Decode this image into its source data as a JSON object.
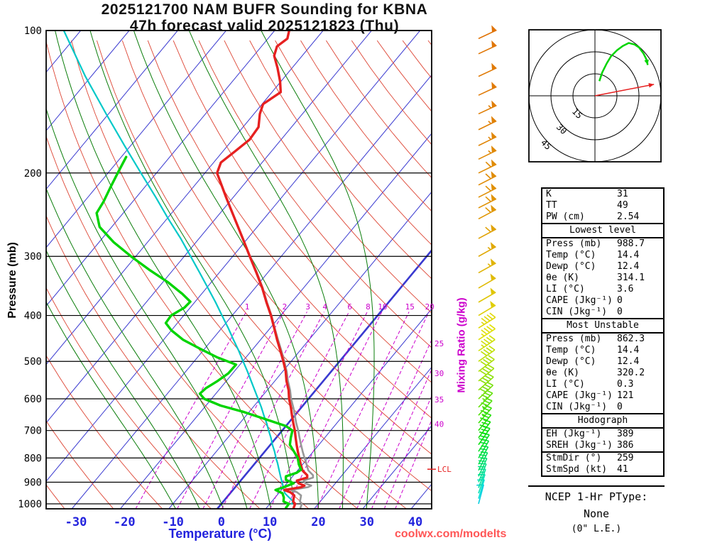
{
  "title": {
    "line1": "2025121700 NAM BUFR Sounding for KBNA",
    "line2": "47h forecast valid 2025121823 (Thu)"
  },
  "axes": {
    "pressure_label": "Pressure (mb)",
    "temperature_label": "Temperature (°C)",
    "mixing_ratio_label": "Mixing Ratio (g/kg)",
    "pressure_ticks": [
      100,
      200,
      300,
      400,
      500,
      600,
      700,
      800,
      900,
      1000
    ],
    "temperature_ticks": [
      -30,
      -20,
      -10,
      0,
      10,
      20,
      30,
      40
    ]
  },
  "chart_data": {
    "type": "skew-t log-p sounding",
    "pressure_range_mb": [
      100,
      1024
    ],
    "temperature_axis_range_c": [
      -36,
      43
    ],
    "isotherms": {
      "min": -120,
      "max": 40,
      "step": 10
    },
    "dry_adiabats_K": {
      "min": 230,
      "max": 460,
      "step": 10
    },
    "moist_adiabats_C": [
      -10,
      -5,
      0,
      5,
      10,
      15,
      20,
      25,
      30
    ],
    "mixing_ratio_values": [
      1,
      2,
      3,
      4,
      6,
      8,
      10,
      15,
      20,
      25,
      30,
      35,
      40
    ],
    "mixing_ratio_labeled_at_mb": 390,
    "lcl": {
      "label": "LCL",
      "pressure": 845
    },
    "style": {
      "isotherm_color": "#3a3ad0",
      "isotherm_zero_width": 2.6,
      "dry_adiabat_color": "#dd4433",
      "moist_adiabat_color": "#0a7d0a",
      "mixing_ratio_color": "#cc00cc",
      "grid_color": "#000000",
      "pressure_tick_color": "#000000",
      "temperature_tick_color": "#2222dd",
      "lcl_color": "#e62020"
    },
    "series": [
      {
        "name": "parcel",
        "color": "#00c8c8",
        "width": 2.2,
        "points": [
          [
            1000,
            14.5
          ],
          [
            988.7,
            14.4
          ],
          [
            960,
            12.1
          ],
          [
            950,
            11.3
          ],
          [
            940,
            10.8
          ],
          [
            920,
            9.8
          ],
          [
            900,
            8.8
          ],
          [
            875,
            7.5
          ],
          [
            850,
            6.2
          ],
          [
            820,
            4.6
          ],
          [
            800,
            3.4
          ],
          [
            775,
            2.0
          ],
          [
            750,
            0.4
          ],
          [
            725,
            -1.1
          ],
          [
            700,
            -2.8
          ],
          [
            675,
            -4.5
          ],
          [
            650,
            -6.4
          ],
          [
            625,
            -8.3
          ],
          [
            600,
            -10.4
          ],
          [
            575,
            -12.6
          ],
          [
            550,
            -14.9
          ],
          [
            525,
            -17.3
          ],
          [
            500,
            -19.9
          ],
          [
            475,
            -22.6
          ],
          [
            450,
            -25.6
          ],
          [
            425,
            -28.7
          ],
          [
            400,
            -32.1
          ],
          [
            375,
            -35.7
          ],
          [
            350,
            -39.7
          ],
          [
            325,
            -44.0
          ],
          [
            300,
            -48.7
          ],
          [
            275,
            -53.8
          ],
          [
            250,
            -59.7
          ],
          [
            225,
            -66.0
          ],
          [
            200,
            -73.2
          ],
          [
            175,
            -81.3
          ],
          [
            150,
            -90.5
          ],
          [
            125,
            -101.2
          ],
          [
            100,
            -113.5
          ]
        ]
      },
      {
        "name": "virtual_temperature",
        "color": "#979797",
        "width": 2.6,
        "points": [
          [
            1020,
            17.0
          ],
          [
            1000,
            16.6
          ],
          [
            988.7,
            15.8
          ],
          [
            960,
            15.0
          ],
          [
            945,
            13.6
          ],
          [
            935,
            12.0
          ],
          [
            922,
            15.0
          ],
          [
            915,
            15.4
          ],
          [
            905,
            13.8
          ],
          [
            893,
            13.0
          ],
          [
            880,
            14.4
          ],
          [
            870,
            14.0
          ],
          [
            850,
            12.2
          ],
          [
            825,
            10.8
          ],
          [
            800,
            9.3
          ],
          [
            775,
            7.8
          ],
          [
            750,
            6.3
          ],
          [
            725,
            4.8
          ],
          [
            700,
            3.3
          ],
          [
            675,
            1.6
          ],
          [
            650,
            0.0
          ],
          [
            625,
            -1.7
          ],
          [
            600,
            -3.6
          ],
          [
            575,
            -5.3
          ],
          [
            550,
            -7.3
          ],
          [
            525,
            -9.2
          ],
          [
            500,
            -11.4
          ],
          [
            475,
            -13.8
          ],
          [
            450,
            -16.4
          ],
          [
            425,
            -19.1
          ],
          [
            400,
            -21.9
          ],
          [
            375,
            -25.1
          ],
          [
            350,
            -28.4
          ],
          [
            325,
            -32.2
          ],
          [
            300,
            -36.4
          ]
        ]
      },
      {
        "name": "temperature",
        "color": "#e62020",
        "width": 3.4,
        "points": [
          [
            1020,
            15.6
          ],
          [
            1000,
            15.2
          ],
          [
            988.7,
            14.4
          ],
          [
            975,
            14.0
          ],
          [
            960,
            13.6
          ],
          [
            945,
            12.2
          ],
          [
            935,
            10.6
          ],
          [
            922,
            13.6
          ],
          [
            915,
            14.0
          ],
          [
            905,
            12.4
          ],
          [
            893,
            11.6
          ],
          [
            880,
            13.2
          ],
          [
            870,
            12.8
          ],
          [
            850,
            11.0
          ],
          [
            825,
            9.6
          ],
          [
            800,
            8.2
          ],
          [
            775,
            6.8
          ],
          [
            750,
            5.4
          ],
          [
            725,
            4.0
          ],
          [
            700,
            2.6
          ],
          [
            675,
            1.0
          ],
          [
            650,
            -0.6
          ],
          [
            625,
            -2.2
          ],
          [
            600,
            -4.0
          ],
          [
            575,
            -5.6
          ],
          [
            550,
            -7.6
          ],
          [
            525,
            -9.4
          ],
          [
            500,
            -11.6
          ],
          [
            475,
            -14.0
          ],
          [
            450,
            -16.6
          ],
          [
            425,
            -19.2
          ],
          [
            400,
            -22.0
          ],
          [
            375,
            -25.2
          ],
          [
            350,
            -28.5
          ],
          [
            325,
            -32.3
          ],
          [
            300,
            -36.5
          ],
          [
            275,
            -41.0
          ],
          [
            250,
            -46.0
          ],
          [
            225,
            -51.5
          ],
          [
            200,
            -57.5
          ],
          [
            190,
            -58.5
          ],
          [
            180,
            -57.5
          ],
          [
            170,
            -56.5
          ],
          [
            160,
            -56.8
          ],
          [
            150,
            -58.8
          ],
          [
            143,
            -59.8
          ],
          [
            135,
            -58.2
          ],
          [
            128,
            -60.2
          ],
          [
            120,
            -63.0
          ],
          [
            113,
            -65.8
          ],
          [
            108,
            -66.8
          ],
          [
            104,
            -66.0
          ],
          [
            100,
            -67.0
          ]
        ]
      },
      {
        "name": "dewpoint",
        "color": "#00d400",
        "width": 3.4,
        "points": [
          [
            1020,
            14.0
          ],
          [
            1000,
            13.9
          ],
          [
            988.7,
            12.4
          ],
          [
            970,
            11.8
          ],
          [
            950,
            10.8
          ],
          [
            935,
            8.8
          ],
          [
            920,
            10.2
          ],
          [
            905,
            11.4
          ],
          [
            890,
            9.2
          ],
          [
            875,
            8.6
          ],
          [
            860,
            10.2
          ],
          [
            847,
            10.6
          ],
          [
            825,
            9.2
          ],
          [
            800,
            7.9
          ],
          [
            775,
            6.0
          ],
          [
            750,
            4.0
          ],
          [
            725,
            3.0
          ],
          [
            700,
            2.1
          ],
          [
            685,
            0.0
          ],
          [
            660,
            -6.0
          ],
          [
            640,
            -11.0
          ],
          [
            620,
            -17.0
          ],
          [
            600,
            -21.5
          ],
          [
            585,
            -23.3
          ],
          [
            570,
            -23.0
          ],
          [
            550,
            -21.8
          ],
          [
            530,
            -20.9
          ],
          [
            508,
            -20.8
          ],
          [
            490,
            -26.0
          ],
          [
            470,
            -31.0
          ],
          [
            450,
            -36.0
          ],
          [
            430,
            -40.0
          ],
          [
            415,
            -42.4
          ],
          [
            400,
            -42.6
          ],
          [
            385,
            -41.2
          ],
          [
            374,
            -41.0
          ],
          [
            360,
            -44.0
          ],
          [
            340,
            -49.0
          ],
          [
            320,
            -55.0
          ],
          [
            300,
            -61.0
          ],
          [
            280,
            -67.0
          ],
          [
            260,
            -72.5
          ],
          [
            243,
            -75.5
          ],
          [
            230,
            -76.0
          ],
          [
            215,
            -77.0
          ],
          [
            200,
            -78.0
          ],
          [
            185,
            -79.0
          ]
        ]
      }
    ],
    "wind_barbs": [
      [
        1000,
        195,
        10
      ],
      [
        975,
        197,
        12
      ],
      [
        950,
        199,
        15
      ],
      [
        925,
        201,
        18
      ],
      [
        900,
        203,
        20
      ],
      [
        875,
        205,
        22
      ],
      [
        850,
        207,
        25
      ],
      [
        825,
        209,
        26
      ],
      [
        800,
        211,
        28
      ],
      [
        775,
        213,
        30
      ],
      [
        750,
        215,
        30
      ],
      [
        725,
        217,
        32
      ],
      [
        700,
        219,
        33
      ],
      [
        675,
        221,
        35
      ],
      [
        650,
        223,
        36
      ],
      [
        625,
        225,
        38
      ],
      [
        600,
        227,
        40
      ],
      [
        575,
        229,
        40
      ],
      [
        550,
        231,
        42
      ],
      [
        525,
        233,
        42
      ],
      [
        500,
        235,
        44
      ],
      [
        475,
        236,
        45
      ],
      [
        450,
        237,
        46
      ],
      [
        425,
        238,
        48
      ],
      [
        400,
        239,
        50
      ],
      [
        375,
        240,
        52
      ],
      [
        350,
        240,
        54
      ],
      [
        325,
        241,
        55
      ],
      [
        300,
        241,
        58
      ],
      [
        275,
        242,
        60
      ],
      [
        250,
        242,
        60
      ],
      [
        237,
        243,
        62
      ],
      [
        225,
        243,
        62
      ],
      [
        212,
        243,
        60
      ],
      [
        200,
        244,
        60
      ],
      [
        187,
        244,
        58
      ],
      [
        175,
        244,
        58
      ],
      [
        162,
        244,
        55
      ],
      [
        150,
        245,
        55
      ],
      [
        137,
        245,
        52
      ],
      [
        125,
        245,
        52
      ],
      [
        112,
        245,
        50
      ],
      [
        104,
        245,
        50
      ]
    ],
    "barb_colormap": [
      [
        1000,
        185
      ],
      [
        950,
        168
      ],
      [
        850,
        145
      ],
      [
        750,
        122
      ],
      [
        650,
        100
      ],
      [
        550,
        78
      ],
      [
        450,
        60
      ],
      [
        350,
        50
      ],
      [
        250,
        40
      ],
      [
        100,
        30
      ]
    ],
    "hodograph": {
      "units_label": "knots",
      "rings_kt": [
        15,
        30,
        45
      ],
      "trace_uv_kt": [
        [
          3,
          10
        ],
        [
          5,
          16
        ],
        [
          8,
          22
        ],
        [
          11,
          27
        ],
        [
          15,
          31
        ],
        [
          19,
          34
        ],
        [
          23,
          36
        ],
        [
          27,
          35
        ],
        [
          30,
          33
        ],
        [
          33,
          29
        ],
        [
          35,
          25
        ],
        [
          36,
          21
        ]
      ],
      "trace_color": "#00d400",
      "storm_motion": {
        "dir_deg": 259,
        "spd_kt": 41,
        "color": "#e62020"
      }
    }
  },
  "stats": {
    "sections": [
      {
        "header": null,
        "rows": [
          [
            "K",
            "31"
          ],
          [
            "TT",
            "49"
          ],
          [
            "PW (cm)",
            "2.54"
          ]
        ]
      },
      {
        "header": "Lowest level",
        "rows": [
          [
            "Press (mb)",
            "988.7"
          ],
          [
            "Temp (°C)",
            "14.4"
          ],
          [
            "Dewp (°C)",
            "12.4"
          ],
          [
            "θe (K)",
            "314.1"
          ],
          [
            "LI (°C)",
            "3.6"
          ],
          [
            "CAPE (Jkg⁻¹)",
            "0"
          ],
          [
            "CIN (Jkg⁻¹)",
            "0"
          ]
        ]
      },
      {
        "header": "Most Unstable",
        "rows": [
          [
            "Press (mb)",
            "862.3"
          ],
          [
            "Temp (°C)",
            "14.4"
          ],
          [
            "Dewp (°C)",
            "12.4"
          ],
          [
            "θe (K)",
            "320.2"
          ],
          [
            "LI (°C)",
            "0.3"
          ],
          [
            "CAPE (Jkg⁻¹)",
            "121"
          ],
          [
            "CIN (Jkg⁻¹)",
            "0"
          ]
        ]
      },
      {
        "header": "Hodograph",
        "rows": [
          [
            "EH (Jkg⁻¹)",
            "389"
          ],
          [
            "SREH (Jkg⁻¹)",
            "386"
          ]
        ]
      },
      {
        "header": null,
        "rows": [
          [
            "StmDir (°)",
            "259"
          ],
          [
            "StmSpd (kt)",
            "41"
          ]
        ]
      }
    ]
  },
  "ptype": {
    "line1": "NCEP 1-Hr PType:",
    "line2": "None",
    "line3": "(0\" L.E.)"
  },
  "footer": "coolwx.com/modelts"
}
